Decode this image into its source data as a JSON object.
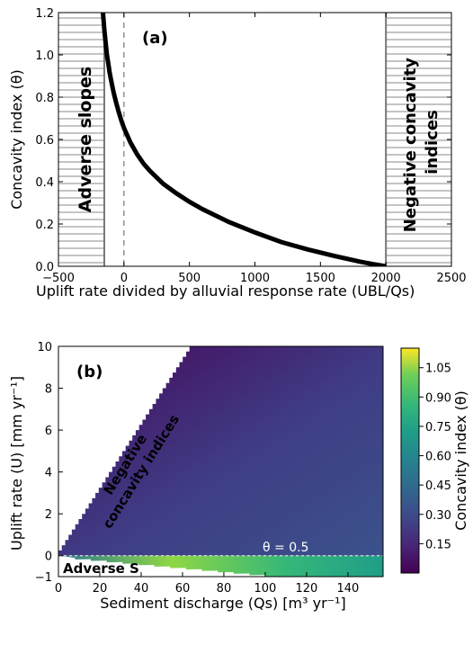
{
  "chart_data": [
    {
      "panel_label": "(a)",
      "type": "line",
      "xlabel": "Uplift rate divided by alluvial response rate (UBL/Qs",
      "ylabel": "Concavity index (θ)",
      "xlim": [
        -500,
        2500
      ],
      "ylim": [
        0.0,
        1.2
      ],
      "xticks": [
        "−500",
        "0",
        "500",
        "1000",
        "1500",
        "2000",
        "2500"
      ],
      "yticks": [
        "0.0",
        "0.2",
        "0.4",
        "0.6",
        "0.8",
        "1.0",
        "1.2"
      ],
      "x": [
        -160,
        -150,
        -140,
        -130,
        -120,
        -110,
        -100,
        -80,
        -60,
        -40,
        -20,
        0,
        50,
        100,
        150,
        200,
        300,
        400,
        500,
        600,
        800,
        1000,
        1200,
        1400,
        1600,
        1800,
        1900,
        2000
      ],
      "y": [
        1.2,
        1.12,
        1.06,
        1.0,
        0.96,
        0.92,
        0.885,
        0.825,
        0.775,
        0.73,
        0.69,
        0.655,
        0.585,
        0.53,
        0.485,
        0.45,
        0.39,
        0.345,
        0.305,
        0.27,
        0.21,
        0.16,
        0.115,
        0.08,
        0.05,
        0.022,
        0.01,
        0.0
      ],
      "dashed_vline_x": 0,
      "hatched_regions": [
        {
          "x_range": [
            -500,
            -150
          ],
          "label": "Adverse slopes"
        },
        {
          "x_range": [
            2000,
            2500
          ],
          "label": "Negative concavity indices"
        }
      ]
    },
    {
      "panel_label": "(b)",
      "type": "heatmap",
      "xlabel": "Sediment discharge (Qs) [m³ yr⁻¹]",
      "ylabel": "Uplift rate (U) [mm yr⁻¹]",
      "xlim": [
        0,
        157
      ],
      "ylim": [
        -1,
        10
      ],
      "xticks": [
        "0",
        "20",
        "40",
        "60",
        "80",
        "100",
        "120",
        "140"
      ],
      "yticks": [
        "−1",
        "0",
        "2",
        "4",
        "6",
        "8",
        "10"
      ],
      "colorbar_label": "Concavity index (θ)",
      "colorbar_ticks": [
        "0.15",
        "0.30",
        "0.45",
        "0.60",
        "0.75",
        "0.90",
        "1.05"
      ],
      "colorbar_range": [
        0.0,
        1.15
      ],
      "contour": {
        "label": "θ = 0.5",
        "y": 0
      },
      "region_labels": [
        "Negative concavity indices",
        "Adverse S"
      ]
    }
  ]
}
